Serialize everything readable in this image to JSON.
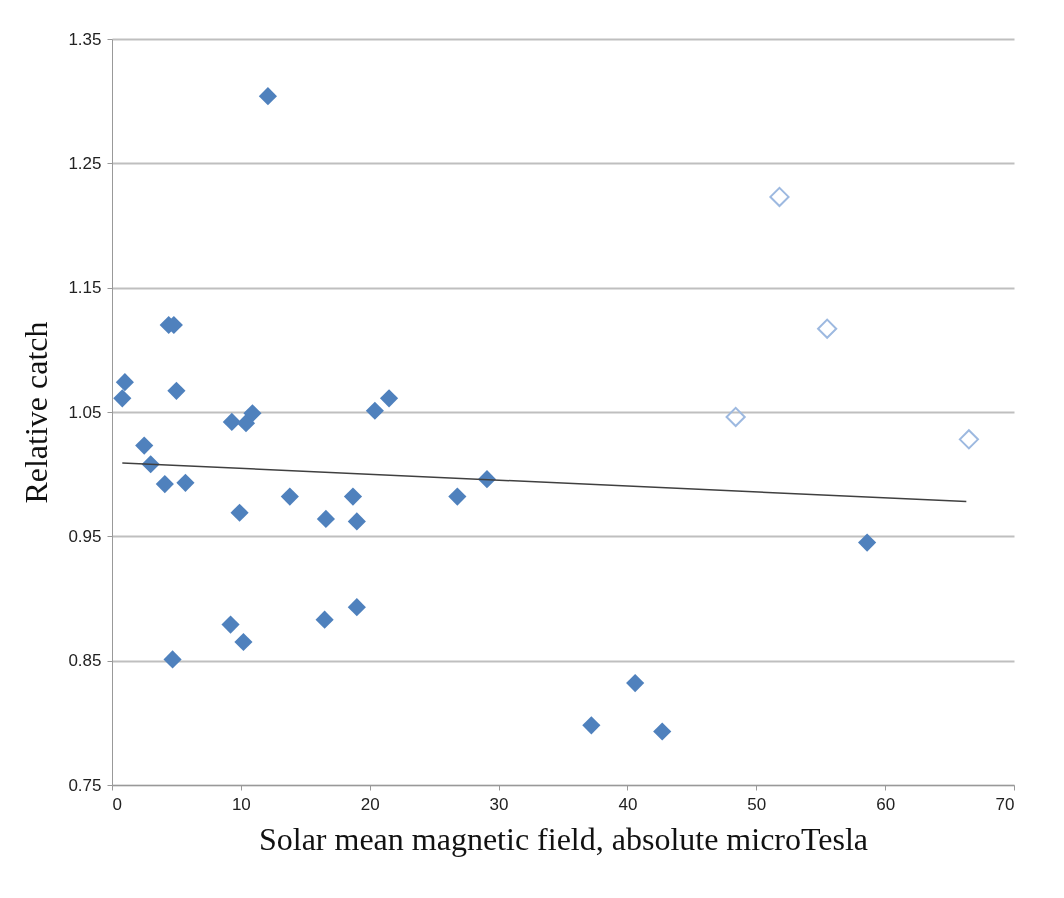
{
  "chart_data": {
    "type": "scatter",
    "xlabel": "Solar mean magnetic field, absolute microTesla",
    "ylabel": "Relative catch",
    "xlim": [
      0,
      70
    ],
    "xticks": [
      0,
      10,
      20,
      30,
      40,
      50,
      60,
      70
    ],
    "ylim": [
      0.75,
      1.35
    ],
    "yticks": [
      0.75,
      0.85,
      0.95,
      1.05,
      1.15,
      1.25,
      1.35
    ],
    "grid": "y",
    "marker": "diamond",
    "series": [
      {
        "color": "#4f81bd",
        "x": [
          0.8,
          1.0,
          2.5,
          3.0,
          4.1,
          5.7,
          4.4,
          4.8,
          5.0,
          4.7,
          9.2,
          10.2,
          9.3,
          10.4,
          10.9,
          9.9,
          12.1,
          13.8,
          16.6,
          16.5,
          18.7,
          19.0,
          19.0,
          20.4,
          21.5,
          26.8,
          29.1,
          37.2,
          40.6,
          42.7,
          58.6
        ],
        "values": [
          1.061,
          1.074,
          1.023,
          1.008,
          0.992,
          0.993,
          1.12,
          1.12,
          1.067,
          0.851,
          0.879,
          0.865,
          1.042,
          1.041,
          1.049,
          0.969,
          1.304,
          0.982,
          0.964,
          0.883,
          0.982,
          0.962,
          0.893,
          1.051,
          1.061,
          0.982,
          0.996,
          0.798,
          0.832,
          0.793,
          0.945
        ]
      },
      {
        "color": "#9db9e0",
        "x": [
          48.4,
          51.8,
          55.5,
          66.5
        ],
        "values": [
          1.046,
          1.223,
          1.117,
          1.028
        ]
      },
      {
        "type": "line",
        "marker": "none",
        "line_style": "solid",
        "color": "#404040",
        "x": [
          0.8,
          66.3
        ],
        "values": [
          1.009,
          0.978
        ]
      }
    ]
  }
}
